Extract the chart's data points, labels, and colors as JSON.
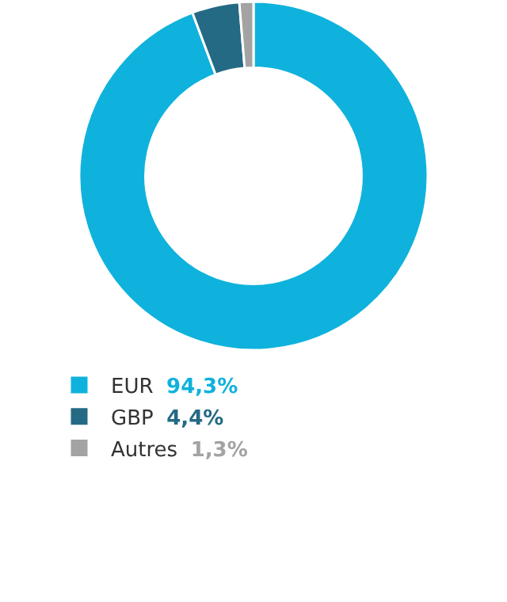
{
  "chart_data": {
    "type": "donut",
    "categories": [
      "EUR",
      "GBP",
      "Autres"
    ],
    "values": [
      94.3,
      4.4,
      1.3
    ],
    "colors": [
      "#0fb2dc",
      "#246a84",
      "#a3a3a3"
    ],
    "value_labels": [
      "94,3%",
      "4,4%",
      "1,3%"
    ],
    "legend": "bottom"
  }
}
